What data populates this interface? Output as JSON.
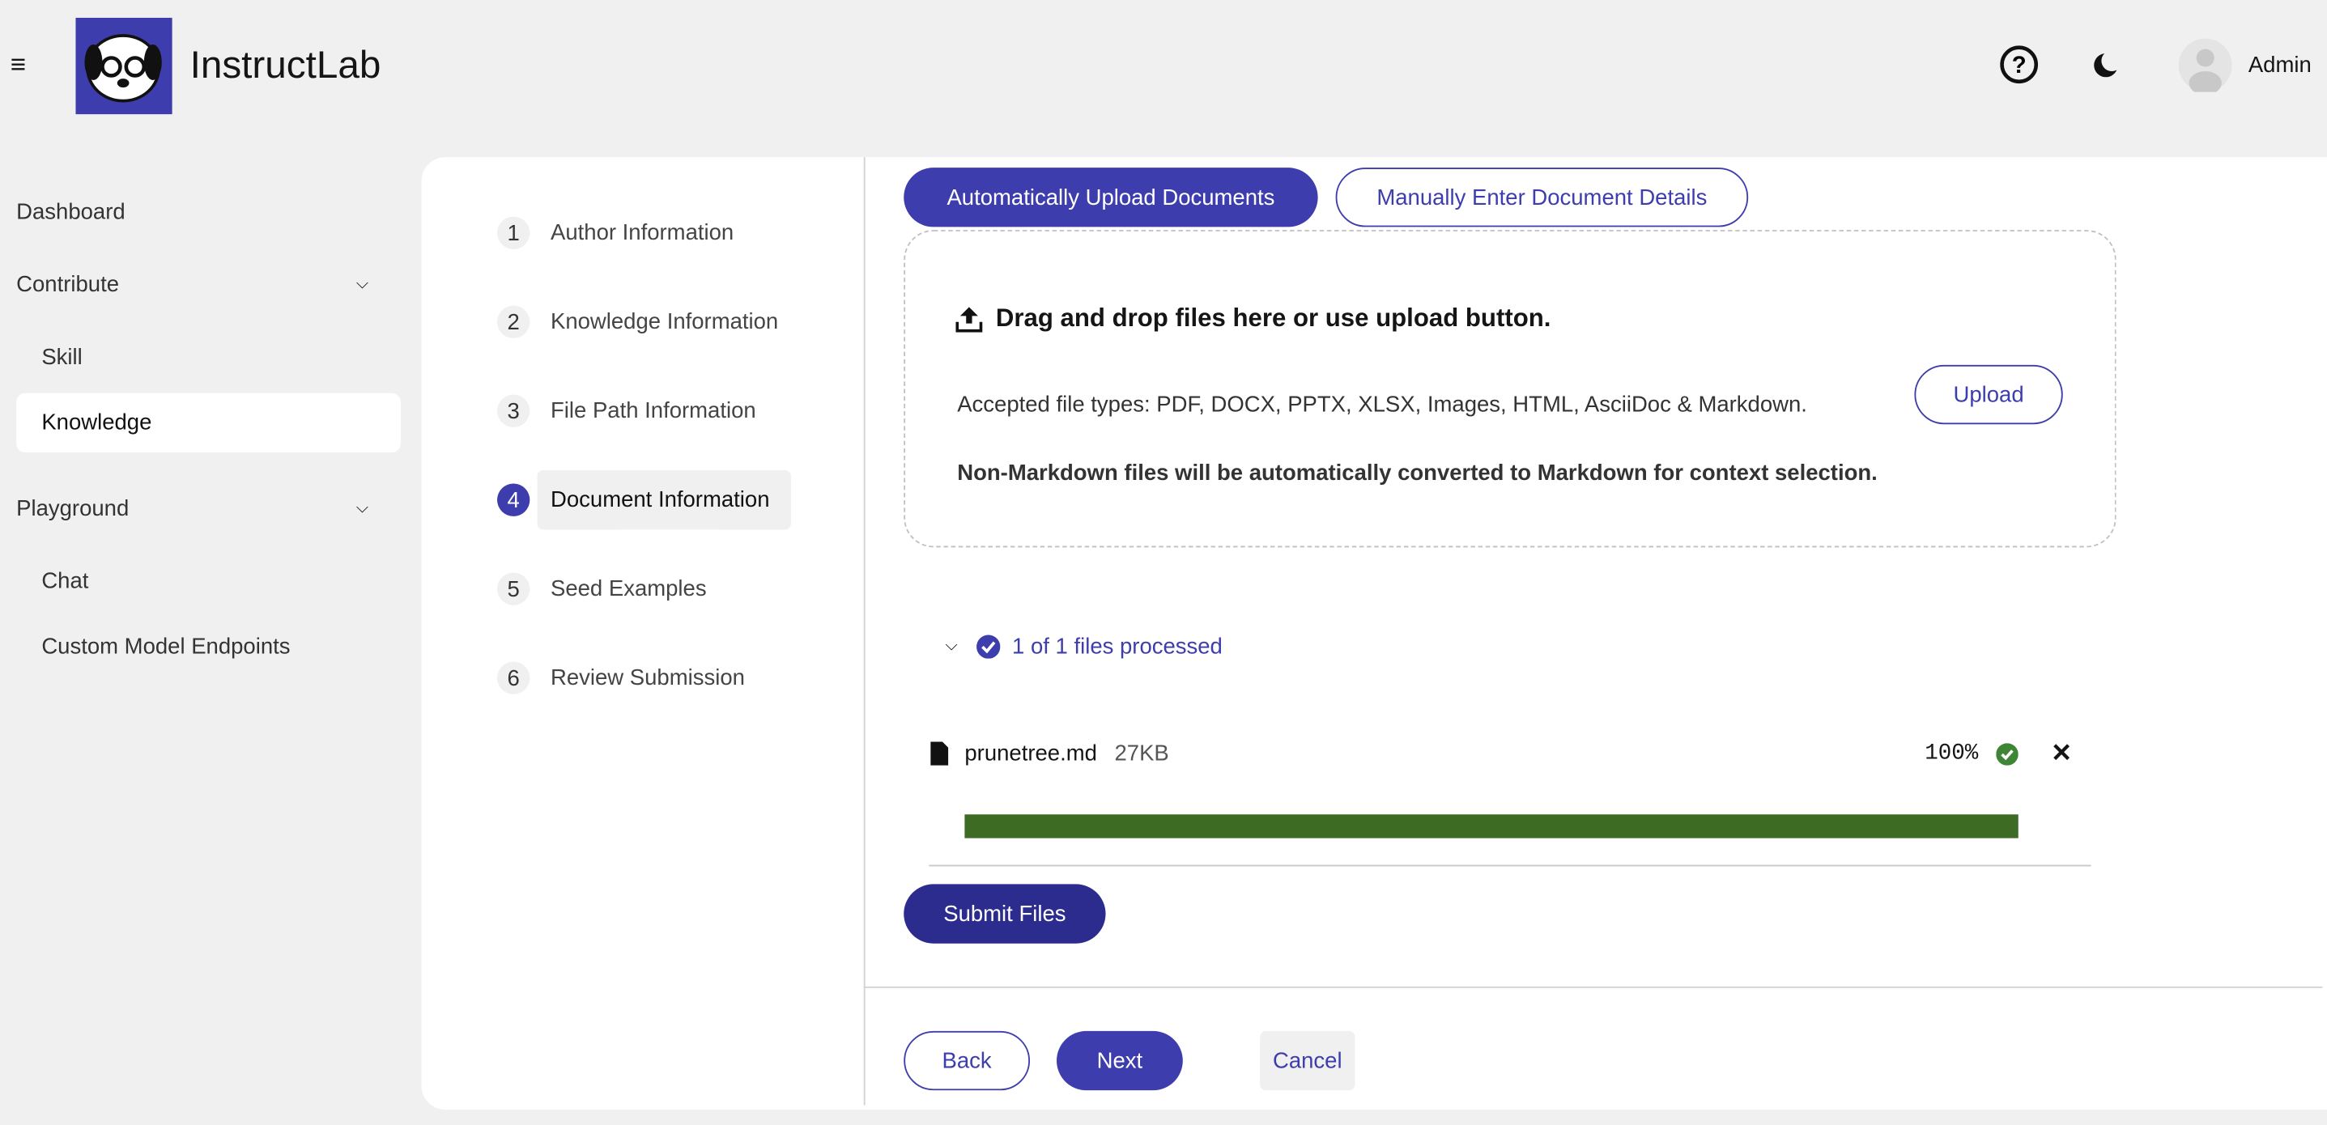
{
  "header": {
    "app_name": "InstructLab",
    "user": "Admin"
  },
  "sidebar": {
    "items": [
      "Dashboard",
      "Contribute",
      "Skill",
      "Knowledge",
      "Playground",
      "Chat",
      "Custom Model Endpoints"
    ]
  },
  "wizard": {
    "steps": [
      {
        "number": "1",
        "label": "Author Information"
      },
      {
        "number": "2",
        "label": "Knowledge Information"
      },
      {
        "number": "3",
        "label": "File Path Information"
      },
      {
        "number": "4",
        "label": "Document Information"
      },
      {
        "number": "5",
        "label": "Seed Examples"
      },
      {
        "number": "6",
        "label": "Review Submission"
      }
    ]
  },
  "tabs": [
    "Automatically Upload Documents",
    "Manually Enter Document Details"
  ],
  "upload": {
    "title": "Drag and drop files here or use upload button.",
    "accepted": "Accepted file types: PDF, DOCX, PPTX, XLSX, Images, HTML, AsciiDoc & Markdown.",
    "note": "Non-Markdown files will be automatically converted to Markdown for context selection.",
    "button": "Upload"
  },
  "files": {
    "summary": "1 of 1 files processed",
    "items": [
      {
        "name": "prunetree.md",
        "size": "27KB",
        "progress": "100%"
      }
    ],
    "submit": "Submit Files"
  },
  "footer": {
    "buttons": [
      "Back",
      "Next",
      "Cancel"
    ]
  }
}
